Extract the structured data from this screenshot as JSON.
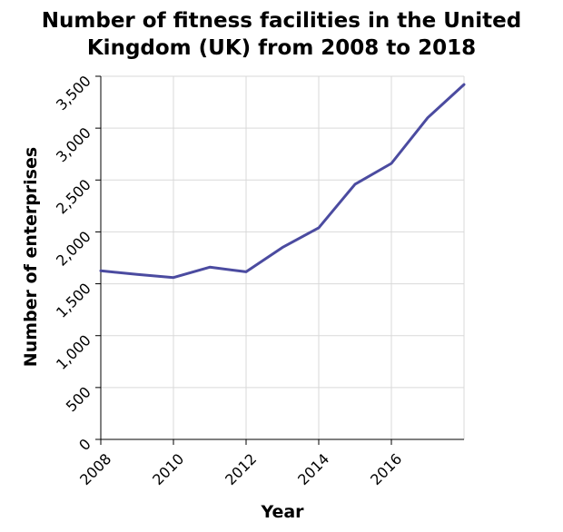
{
  "chart_data": {
    "type": "line",
    "title": "Number of fitness facilities in the United Kingdom (UK) from 2008 to 2018",
    "title_lines": [
      "Number of fitness facilities in the United",
      "Kingdom (UK) from 2008 to 2018"
    ],
    "xlabel": "Year",
    "ylabel": "Number of enterprises",
    "x_ticks": [
      "2008",
      "2010",
      "2012",
      "2014",
      "2016"
    ],
    "y_ticks": [
      "0",
      "500",
      "1,000",
      "1,500",
      "2,000",
      "2,500",
      "3,000",
      "3,500"
    ],
    "xlim": [
      2008,
      2018
    ],
    "ylim": [
      0,
      3500
    ],
    "grid": true,
    "series": [
      {
        "color": "#4b4ba0",
        "x": [
          2008,
          2009,
          2010,
          2011,
          2012,
          2013,
          2014,
          2015,
          2016,
          2017,
          2018
        ],
        "y": [
          1625,
          1590,
          1560,
          1660,
          1615,
          1850,
          2040,
          2460,
          2660,
          3100,
          3420
        ]
      }
    ]
  }
}
